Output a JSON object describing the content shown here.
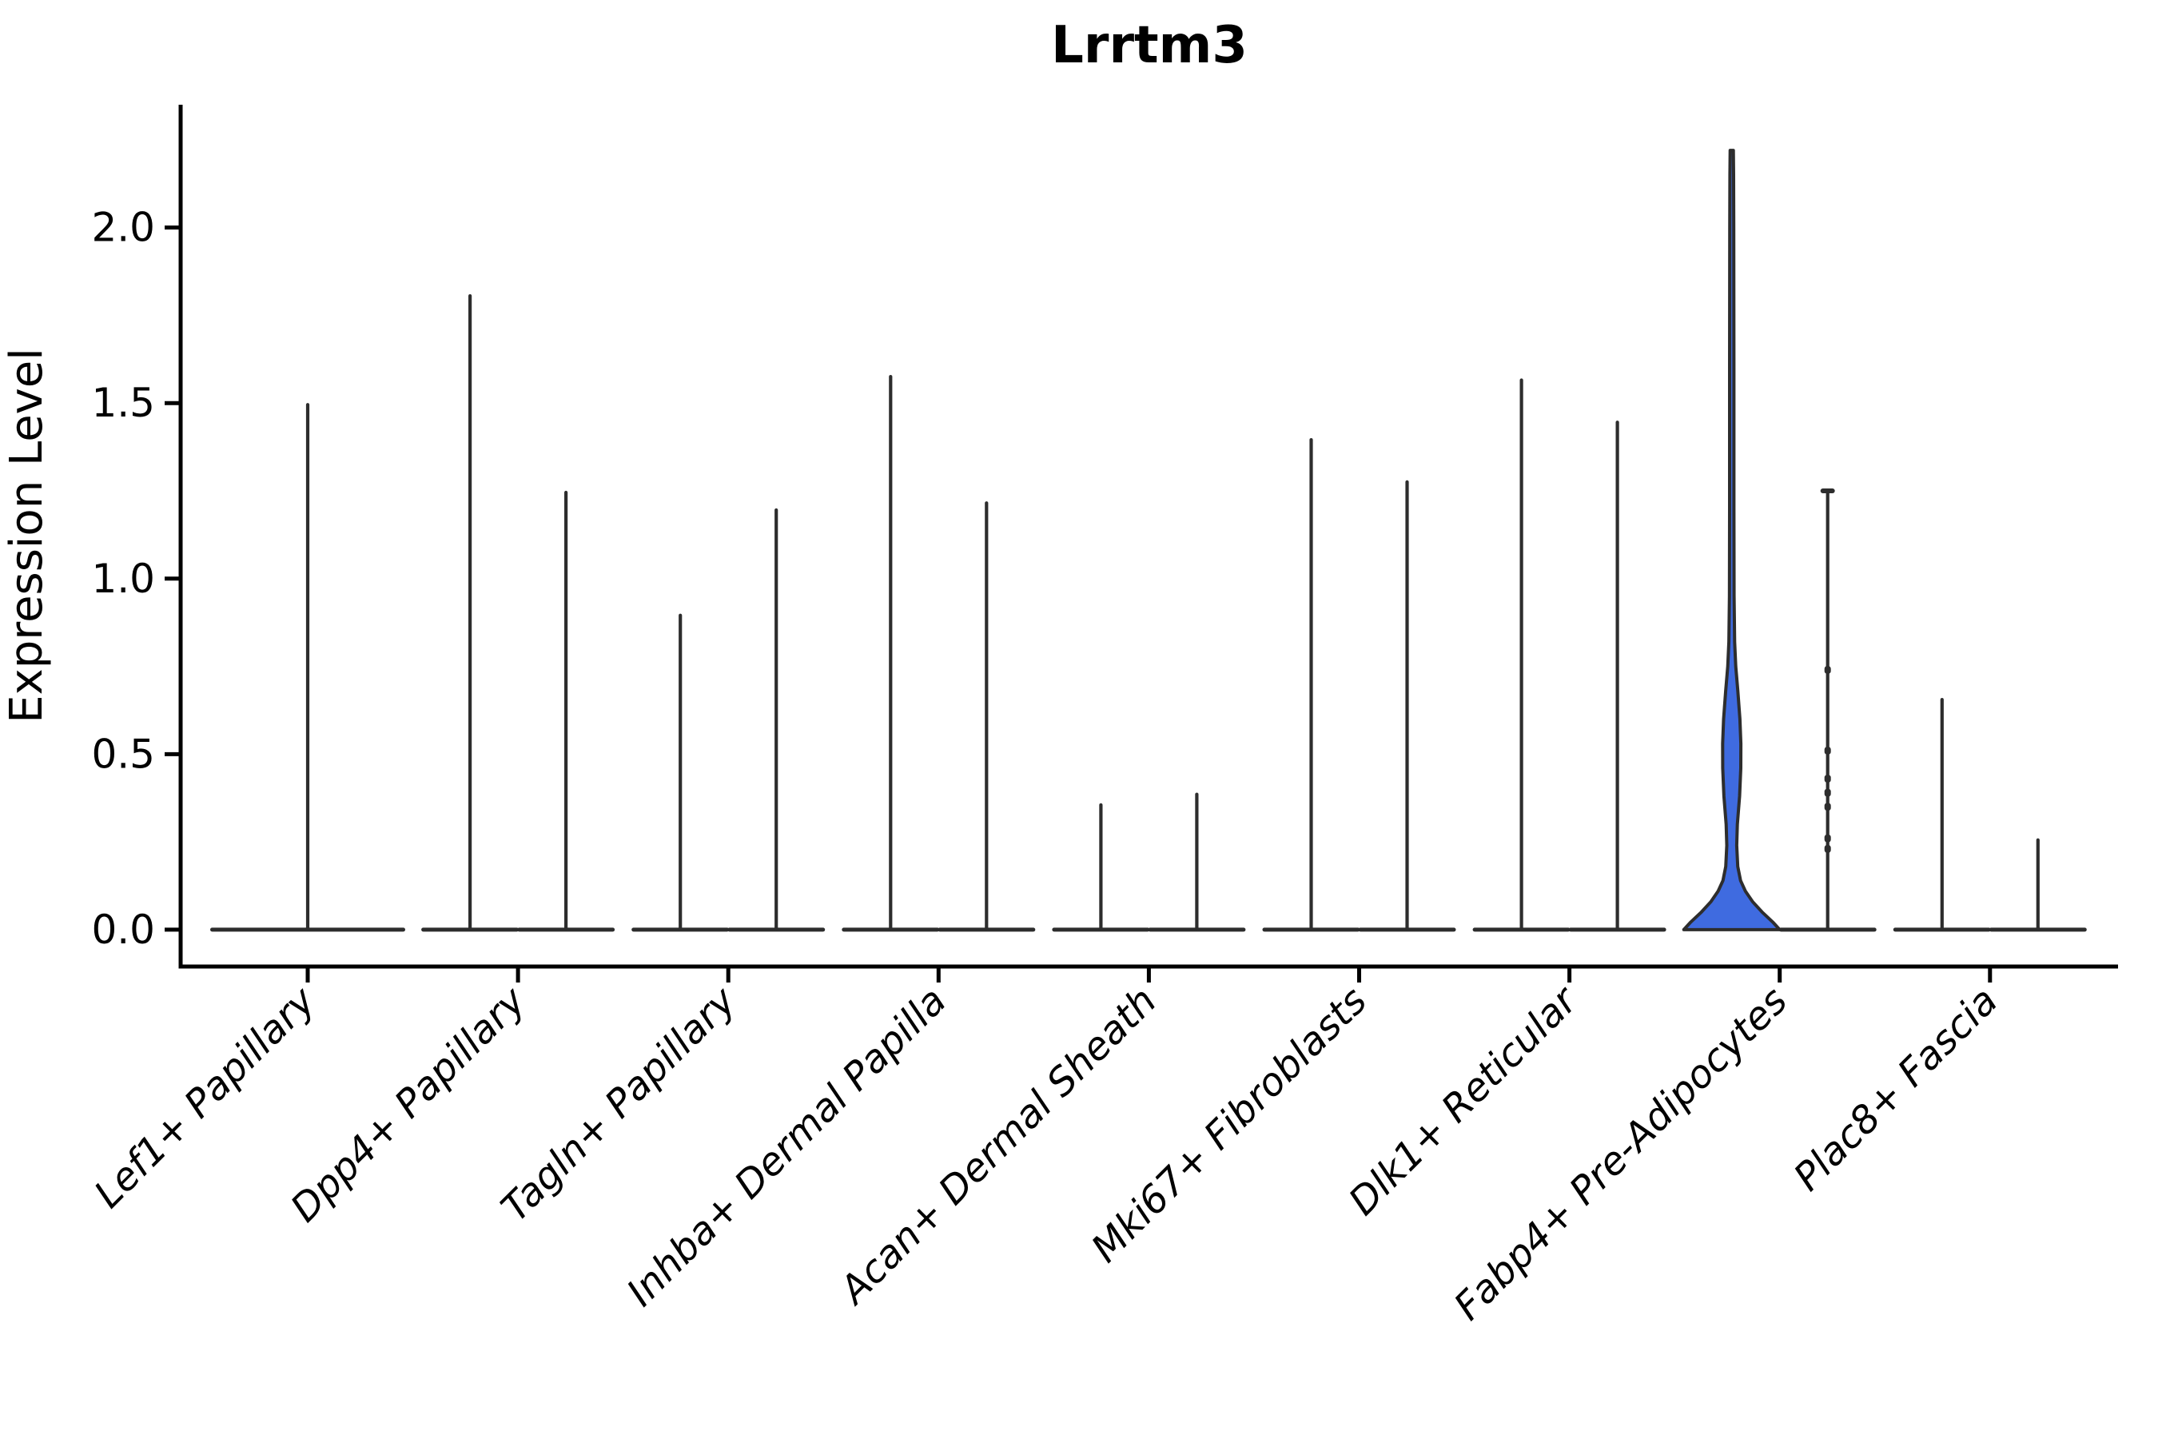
{
  "title": "Lrrtm3",
  "y_axis": {
    "label": "Expression Level",
    "tick_labels": [
      "0.0",
      "0.5",
      "1.0",
      "1.5",
      "2.0"
    ]
  },
  "chart_data": {
    "type": "violin",
    "title": "Lrrtm3",
    "xlabel": "",
    "ylabel": "Expression Level",
    "ylim": [
      -0.105,
      2.35
    ],
    "yticks": [
      {
        "value": 0.0,
        "label": "0.0"
      },
      {
        "value": 0.5,
        "label": "0.5"
      },
      {
        "value": 1.0,
        "label": "1.0"
      },
      {
        "value": 1.5,
        "label": "1.5"
      },
      {
        "value": 2.0,
        "label": "2.0"
      }
    ],
    "grid": false,
    "legend": null,
    "colors": {
      "highlight_fill": "#3f6be0",
      "violin_edge": "#2d2d2d",
      "axis": "#000000",
      "text": "#000000",
      "background": "#ffffff"
    },
    "description": "Violin plot of Lrrtm3 expression; most violins collapse to a flat base at 0 with a thin spike to the max expression value; the Fabp4+ Pre-Adipocytes left violin is filled blue with a visible density bulge.",
    "categories": [
      {
        "label": "Lef1+ Papillary",
        "violins": [
          {
            "position": "center",
            "max": 1.5
          }
        ]
      },
      {
        "label": "Dpp4+ Papillary",
        "violins": [
          {
            "position": "left",
            "max": 1.81
          },
          {
            "position": "right",
            "max": 1.25
          }
        ]
      },
      {
        "label": "Tagln+ Papillary",
        "violins": [
          {
            "position": "left",
            "max": 0.9
          },
          {
            "position": "right",
            "max": 1.2
          }
        ]
      },
      {
        "label": "Inhba+ Dermal Papilla",
        "violins": [
          {
            "position": "left",
            "max": 1.58
          },
          {
            "position": "right",
            "max": 1.22
          }
        ]
      },
      {
        "label": "Acan+ Dermal Sheath",
        "violins": [
          {
            "position": "left",
            "max": 0.36
          },
          {
            "position": "right",
            "max": 0.39
          }
        ]
      },
      {
        "label": "Mki67+ Fibroblasts",
        "violins": [
          {
            "position": "left",
            "max": 1.4
          },
          {
            "position": "right",
            "max": 1.28
          }
        ]
      },
      {
        "label": "Dlk1+ Reticular",
        "violins": [
          {
            "position": "left",
            "max": 1.57
          },
          {
            "position": "right",
            "max": 1.45
          }
        ]
      },
      {
        "label": "Fabp4+ Pre-Adipocytes",
        "violins": [
          {
            "position": "left",
            "max": 2.22,
            "filled": true,
            "profile": [
              [
                0.0,
                60
              ],
              [
                0.02,
                52
              ],
              [
                0.05,
                38
              ],
              [
                0.08,
                26
              ],
              [
                0.11,
                17
              ],
              [
                0.14,
                11
              ],
              [
                0.18,
                7.5
              ],
              [
                0.24,
                6.2
              ],
              [
                0.3,
                7.0
              ],
              [
                0.38,
                9.8
              ],
              [
                0.46,
                11.3
              ],
              [
                0.53,
                11.4
              ],
              [
                0.6,
                10.2
              ],
              [
                0.68,
                7.6
              ],
              [
                0.75,
                5.0
              ],
              [
                0.82,
                3.6
              ],
              [
                0.95,
                2.9
              ],
              [
                1.2,
                2.7
              ],
              [
                1.6,
                2.7
              ],
              [
                2.0,
                2.5
              ],
              [
                2.15,
                2.3
              ],
              [
                2.22,
                2.0
              ]
            ]
          },
          {
            "position": "right",
            "max": 1.25,
            "cap": true,
            "dashes": [
              0.74,
              0.51,
              0.43,
              0.39,
              0.35,
              0.26,
              0.23
            ]
          }
        ]
      },
      {
        "label": "Plac8+ Fascia",
        "violins": [
          {
            "position": "left",
            "max": 0.66
          },
          {
            "position": "right",
            "max": 0.26
          }
        ]
      }
    ]
  }
}
